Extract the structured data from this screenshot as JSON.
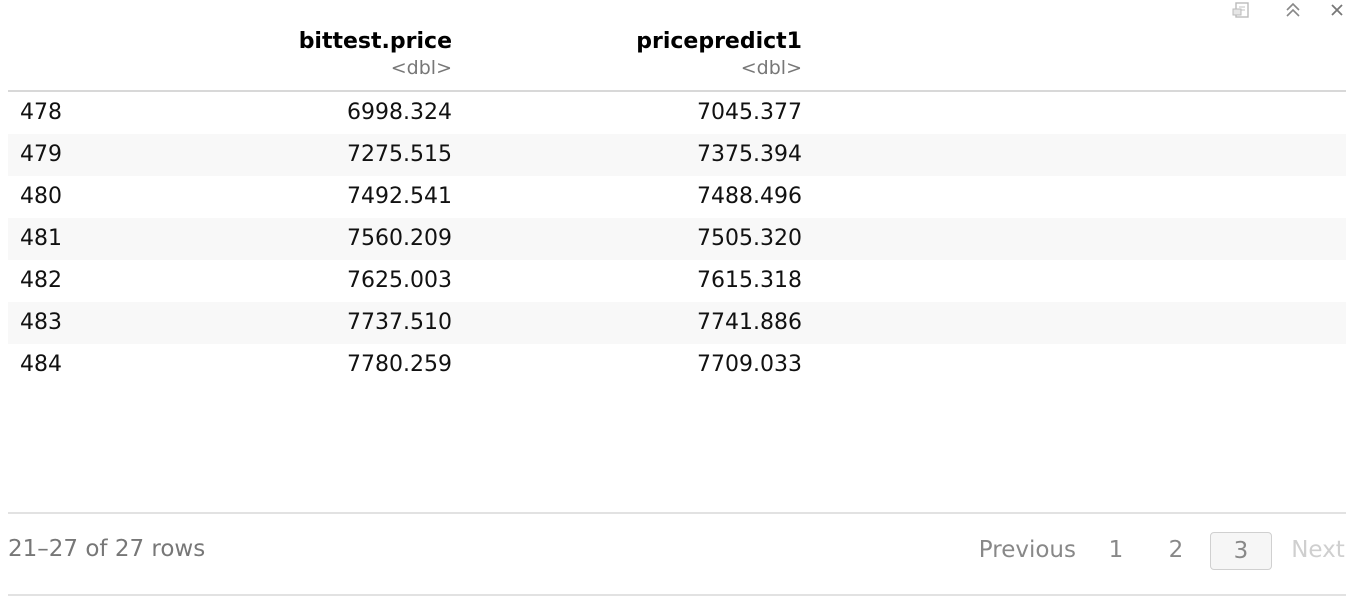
{
  "toolbar": {
    "export_icon": "export-icon",
    "collapse_icon": "collapse-up-icon",
    "close_icon": "close-icon"
  },
  "columns": [
    {
      "name": "bittest.price",
      "type": "<dbl>"
    },
    {
      "name": "pricepredict1",
      "type": "<dbl>"
    }
  ],
  "rows": [
    {
      "index": "478",
      "a": "6998.324",
      "b": "7045.377"
    },
    {
      "index": "479",
      "a": "7275.515",
      "b": "7375.394"
    },
    {
      "index": "480",
      "a": "7492.541",
      "b": "7488.496"
    },
    {
      "index": "481",
      "a": "7560.209",
      "b": "7505.320"
    },
    {
      "index": "482",
      "a": "7625.003",
      "b": "7615.318"
    },
    {
      "index": "483",
      "a": "7737.510",
      "b": "7741.886"
    },
    {
      "index": "484",
      "a": "7780.259",
      "b": "7709.033"
    }
  ],
  "footer": {
    "info": "21–27 of 27 rows",
    "previous": "Previous",
    "pages": [
      "1",
      "2",
      "3"
    ],
    "current_page": "3",
    "next": "Next"
  }
}
